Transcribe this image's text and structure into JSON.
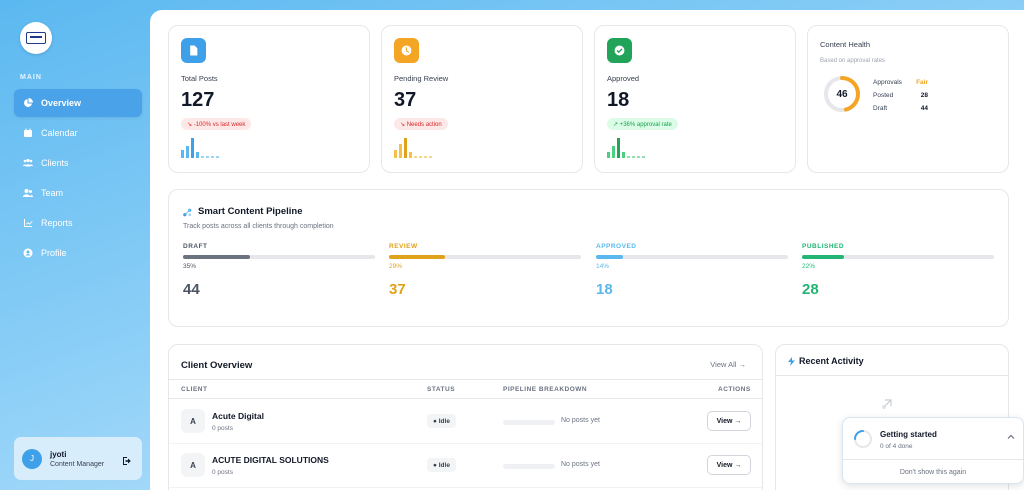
{
  "sidebar": {
    "section_label": "MAIN",
    "items": [
      {
        "label": "Overview",
        "icon": "pie-chart-icon"
      },
      {
        "label": "Calendar",
        "icon": "calendar-icon"
      },
      {
        "label": "Clients",
        "icon": "users-icon"
      },
      {
        "label": "Team",
        "icon": "team-icon"
      },
      {
        "label": "Reports",
        "icon": "line-chart-icon"
      },
      {
        "label": "Profile",
        "icon": "user-circle-icon"
      }
    ],
    "user": {
      "initial": "J",
      "name": "jyoti",
      "role": "Content Manager"
    }
  },
  "stats": [
    {
      "label": "Total Posts",
      "value": "127",
      "badge": "↘ -100% vs last week",
      "color": "#3ea0e8"
    },
    {
      "label": "Pending Review",
      "value": "37",
      "badge": "↘ Needs action",
      "color": "#f5a524"
    },
    {
      "label": "Approved",
      "value": "18",
      "badge": "↗ +36% approval rate",
      "color": "#22c55e"
    }
  ],
  "health": {
    "title": "Content Health",
    "subtitle": "Based on approval rates",
    "score": "46",
    "score_fraction": 0.46,
    "rows": [
      {
        "label": "Approvals",
        "value": "Fair"
      },
      {
        "label": "Posted",
        "value": "28"
      },
      {
        "label": "Draft",
        "value": "44"
      }
    ]
  },
  "pipeline": {
    "title": "Smart Content Pipeline",
    "subtitle": "Track posts across all clients through completion",
    "stages": [
      {
        "name": "DRAFT",
        "percent": "35%",
        "count": "44",
        "color": "#6b7280",
        "fill": 0.35
      },
      {
        "name": "REVIEW",
        "percent": "29%",
        "count": "37",
        "color": "#e0a21a",
        "fill": 0.29
      },
      {
        "name": "APPROVED",
        "percent": "14%",
        "count": "18",
        "color": "#5ab8ef",
        "fill": 0.14
      },
      {
        "name": "PUBLISHED",
        "percent": "22%",
        "count": "28",
        "color": "#22b573",
        "fill": 0.22
      }
    ]
  },
  "clients": {
    "title": "Client Overview",
    "view_all": "View All →",
    "columns": [
      "CLIENT",
      "STATUS",
      "PIPELINE BREAKDOWN",
      "ACTIONS"
    ],
    "rows": [
      {
        "initial": "A",
        "name": "Acute Digital",
        "posts": "0 posts",
        "status": "● Idle",
        "breakdown": "No posts yet",
        "action": "View →"
      },
      {
        "initial": "A",
        "name": "ACUTE DIGITAL SOLUTIONS",
        "posts": "0 posts",
        "status": "● Idle",
        "breakdown": "No posts yet",
        "action": "View →"
      }
    ]
  },
  "activity": {
    "title": "Recent Activity"
  },
  "onboarding": {
    "title": "Getting started",
    "progress": "0 of 4 done",
    "dismiss": "Don't show this again"
  }
}
